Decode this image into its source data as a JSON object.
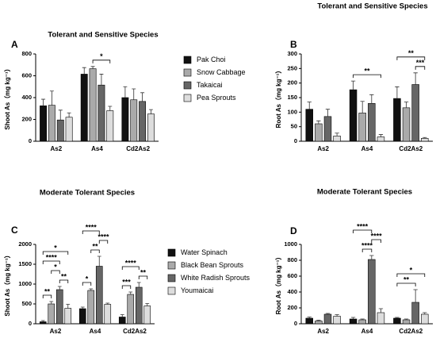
{
  "chart_data": [
    {
      "type": "bar",
      "panel": "A",
      "title": "Tolerant and Sensitive Species",
      "y_label": "Shoot As（mg kg⁻¹）",
      "legend": true,
      "categories": [
        "As2",
        "As4",
        "Cd2As2"
      ],
      "ylim": [
        0,
        800
      ],
      "yticks": [
        0,
        200,
        400,
        600,
        800
      ],
      "series": [
        {
          "name": "Pak Choi",
          "color": "#111111",
          "values": [
            325,
            615,
            400
          ],
          "errors": [
            60,
            60,
            100
          ]
        },
        {
          "name": "Snow Cabbage",
          "color": "#aaaaaa",
          "values": [
            330,
            665,
            380
          ],
          "errors": [
            130,
            20,
            100
          ]
        },
        {
          "name": "Takaicai",
          "color": "#666666",
          "values": [
            195,
            515,
            365
          ],
          "errors": [
            90,
            100,
            80
          ]
        },
        {
          "name": "Pea Sprouts",
          "color": "#dddddd",
          "values": [
            220,
            280,
            250
          ],
          "errors": [
            40,
            40,
            40
          ]
        }
      ],
      "brackets": [
        {
          "category": "As4",
          "from": "Snow Cabbage",
          "to": "Pea Sprouts",
          "label": "*"
        }
      ]
    },
    {
      "type": "bar",
      "panel": "B",
      "title": "Tolerant and Sensitive Species",
      "y_label": "Root As（mg kg⁻¹）",
      "legend": false,
      "categories": [
        "As2",
        "As4",
        "Cd2As2"
      ],
      "ylim": [
        0,
        300
      ],
      "yticks": [
        0,
        50,
        100,
        150,
        200,
        250,
        300
      ],
      "series": [
        {
          "name": "Pak Choi",
          "color": "#111111",
          "values": [
            110,
            177,
            147
          ],
          "errors": [
            25,
            30,
            40
          ]
        },
        {
          "name": "Snow Cabbage",
          "color": "#aaaaaa",
          "values": [
            60,
            97,
            115
          ],
          "errors": [
            10,
            40,
            20
          ]
        },
        {
          "name": "Takaicai",
          "color": "#666666",
          "values": [
            85,
            130,
            195
          ],
          "errors": [
            25,
            30,
            40
          ]
        },
        {
          "name": "Pea Sprouts",
          "color": "#dddddd",
          "values": [
            18,
            15,
            10
          ],
          "errors": [
            10,
            8,
            3
          ]
        }
      ],
      "brackets": [
        {
          "category": "As4",
          "from": "Pak Choi",
          "to": "Pea Sprouts",
          "label": "**"
        },
        {
          "category": "Cd2As2",
          "from": "Takaicai",
          "to": "Pea Sprouts",
          "label": "***"
        },
        {
          "category": "Cd2As2",
          "from": "Pak Choi",
          "to": "Pea Sprouts",
          "label": "**"
        }
      ]
    },
    {
      "type": "bar",
      "panel": "C",
      "title": "Moderate Tolerant Species",
      "y_label": "Shoot As（mg kg⁻¹）",
      "legend": true,
      "categories": [
        "As2",
        "As4",
        "Cd2As2"
      ],
      "ylim": [
        0,
        2000
      ],
      "yticks": [
        0,
        500,
        1000,
        1500,
        2000
      ],
      "series": [
        {
          "name": "Water Spinach",
          "color": "#111111",
          "values": [
            50,
            380,
            170
          ],
          "errors": [
            30,
            40,
            60
          ]
        },
        {
          "name": "Black Bean Sprouts",
          "color": "#aaaaaa",
          "values": [
            500,
            840,
            740
          ],
          "errors": [
            60,
            40,
            60
          ]
        },
        {
          "name": "White Radish Sprouts",
          "color": "#666666",
          "values": [
            860,
            1450,
            920
          ],
          "errors": [
            80,
            250,
            120
          ]
        },
        {
          "name": "Youmaicai",
          "color": "#dddddd",
          "values": [
            390,
            490,
            450
          ],
          "errors": [
            100,
            30,
            60
          ]
        }
      ],
      "brackets": [
        {
          "category": "As2",
          "from": "Water Spinach",
          "to": "Black Bean Sprouts",
          "label": "**"
        },
        {
          "category": "As2",
          "from": "White Radish Sprouts",
          "to": "Youmaicai",
          "label": "**"
        },
        {
          "category": "As2",
          "from": "Black Bean Sprouts",
          "to": "White Radish Sprouts",
          "label": "*"
        },
        {
          "category": "As2",
          "from": "Water Spinach",
          "to": "White Radish Sprouts",
          "label": "****"
        },
        {
          "category": "As2",
          "from": "Water Spinach",
          "to": "Youmaicai",
          "label": "*"
        },
        {
          "category": "As4",
          "from": "Water Spinach",
          "to": "Black Bean Sprouts",
          "label": "*"
        },
        {
          "category": "As4",
          "from": "Black Bean Sprouts",
          "to": "White Radish Sprouts",
          "label": "**"
        },
        {
          "category": "As4",
          "from": "White Radish Sprouts",
          "to": "Youmaicai",
          "label": "****"
        },
        {
          "category": "As4",
          "from": "Water Spinach",
          "to": "White Radish Sprouts",
          "label": "****"
        },
        {
          "category": "Cd2As2",
          "from": "Water Spinach",
          "to": "Black Bean Sprouts",
          "label": "***"
        },
        {
          "category": "Cd2As2",
          "from": "White Radish Sprouts",
          "to": "Youmaicai",
          "label": "**"
        },
        {
          "category": "Cd2As2",
          "from": "Water Spinach",
          "to": "White Radish Sprouts",
          "label": "****"
        }
      ]
    },
    {
      "type": "bar",
      "panel": "D",
      "title": "Moderate Tolerant Species",
      "y_label": "Root As（mg kg⁻¹）",
      "legend": false,
      "categories": [
        "As2",
        "As4",
        "Cd2As2"
      ],
      "ylim": [
        0,
        1000
      ],
      "yticks": [
        0,
        200,
        400,
        600,
        800,
        1000
      ],
      "series": [
        {
          "name": "Water Spinach",
          "color": "#111111",
          "values": [
            70,
            60,
            70
          ],
          "errors": [
            15,
            20,
            10
          ]
        },
        {
          "name": "Black Bean Sprouts",
          "color": "#aaaaaa",
          "values": [
            35,
            50,
            50
          ],
          "errors": [
            10,
            10,
            10
          ]
        },
        {
          "name": "White Radish Sprouts",
          "color": "#666666",
          "values": [
            120,
            810,
            270
          ],
          "errors": [
            10,
            50,
            160
          ]
        },
        {
          "name": "Youmaicai",
          "color": "#dddddd",
          "values": [
            95,
            140,
            120
          ],
          "errors": [
            20,
            50,
            20
          ]
        }
      ],
      "brackets": [
        {
          "category": "As4",
          "from": "Black Bean Sprouts",
          "to": "White Radish Sprouts",
          "label": "****"
        },
        {
          "category": "As4",
          "from": "White Radish Sprouts",
          "to": "Youmaicai",
          "label": "****"
        },
        {
          "category": "As4",
          "from": "Water Spinach",
          "to": "White Radish Sprouts",
          "label": "****"
        },
        {
          "category": "Cd2As2",
          "from": "Water Spinach",
          "to": "White Radish Sprouts",
          "label": "**"
        },
        {
          "category": "Cd2As2",
          "from": "Water Spinach",
          "to": "Youmaicai",
          "label": "*"
        }
      ]
    }
  ]
}
